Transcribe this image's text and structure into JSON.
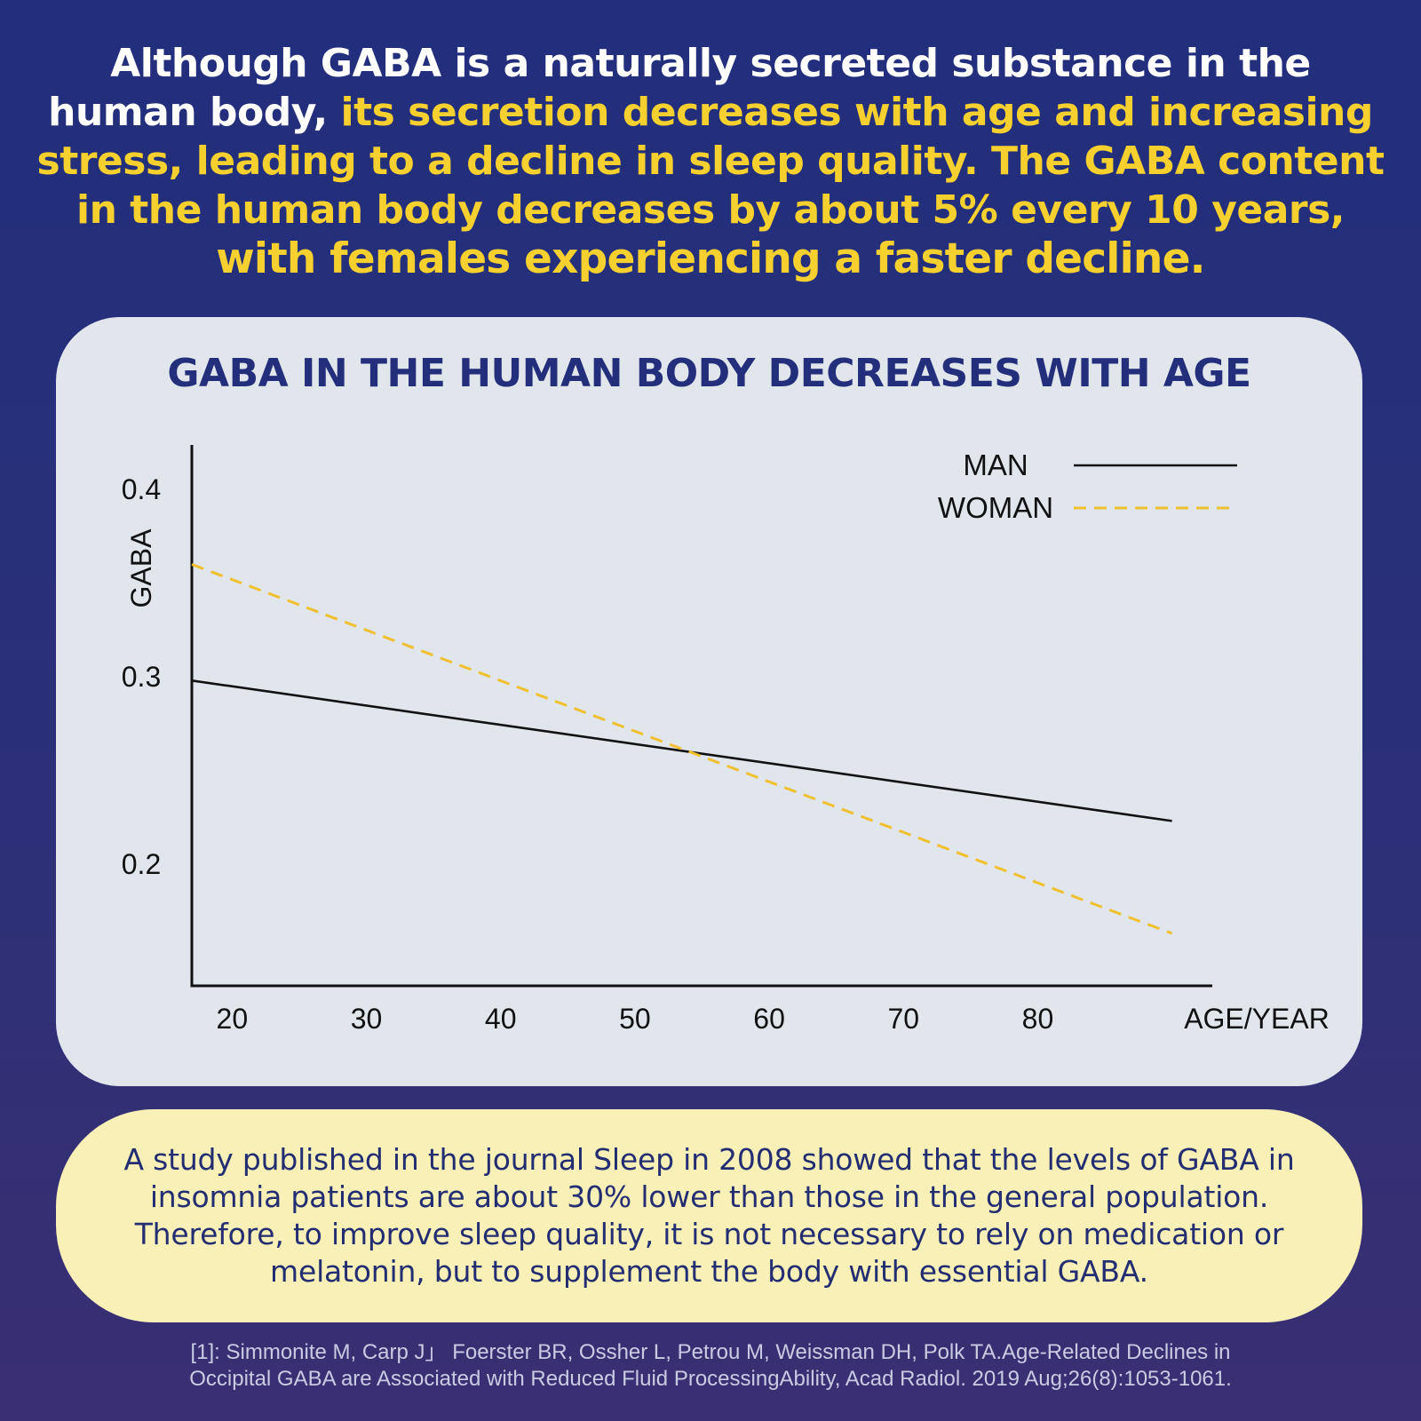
{
  "headline": {
    "part1": "Although GABA is a naturally secreted substance in the human body, ",
    "part2": "its secretion decreases with age and increasing stress, leading to a decline in sleep quality. The GABA content in the human body decreases by about 5% every 10 years,",
    "part3": "with females experiencing a faster decline."
  },
  "colors": {
    "background": "#222f7c",
    "accent_yellow": "#f5d02e",
    "title_navy": "#232f7a",
    "man_line": "#111111",
    "woman_line": "#f0c02e"
  },
  "chart_data": {
    "type": "line",
    "title": "GABA IN THE HUMAN BODY DECREASES WITH AGE",
    "xlabel": "AGE/YEAR",
    "ylabel": "GABA",
    "x_ticks": [
      "20",
      "30",
      "40",
      "50",
      "60",
      "70",
      "80"
    ],
    "y_ticks": [
      "0.4",
      "0.3",
      "0.2"
    ],
    "xlim": [
      17,
      93
    ],
    "ylim": [
      0.135,
      0.42
    ],
    "legend_position": "top-right",
    "series": [
      {
        "name": "MAN",
        "style": "solid",
        "x": [
          17,
          90
        ],
        "y": [
          0.298,
          0.223
        ]
      },
      {
        "name": "WOMAN",
        "style": "dashed",
        "x": [
          17,
          90
        ],
        "y": [
          0.36,
          0.163
        ]
      }
    ]
  },
  "note": {
    "text": "A study published in the journal Sleep in 2008 showed that the levels of GABA in insomnia patients are about 30% lower than those in the general population. Therefore, to improve sleep quality, it is not necessary to rely on medication or melatonin, but to supplement the body with essential GABA."
  },
  "reference": {
    "line1": "[1]: Simmonite M, Carp J」 Foerster BR, Ossher L, Petrou M, Weissman DH, Polk TA.Age-Related Declines in",
    "line2": "Occipital GABA are Associated with Reduced Fluid ProcessingAbility, Acad Radiol. 2019 Aug;26(8):1053-1061."
  }
}
